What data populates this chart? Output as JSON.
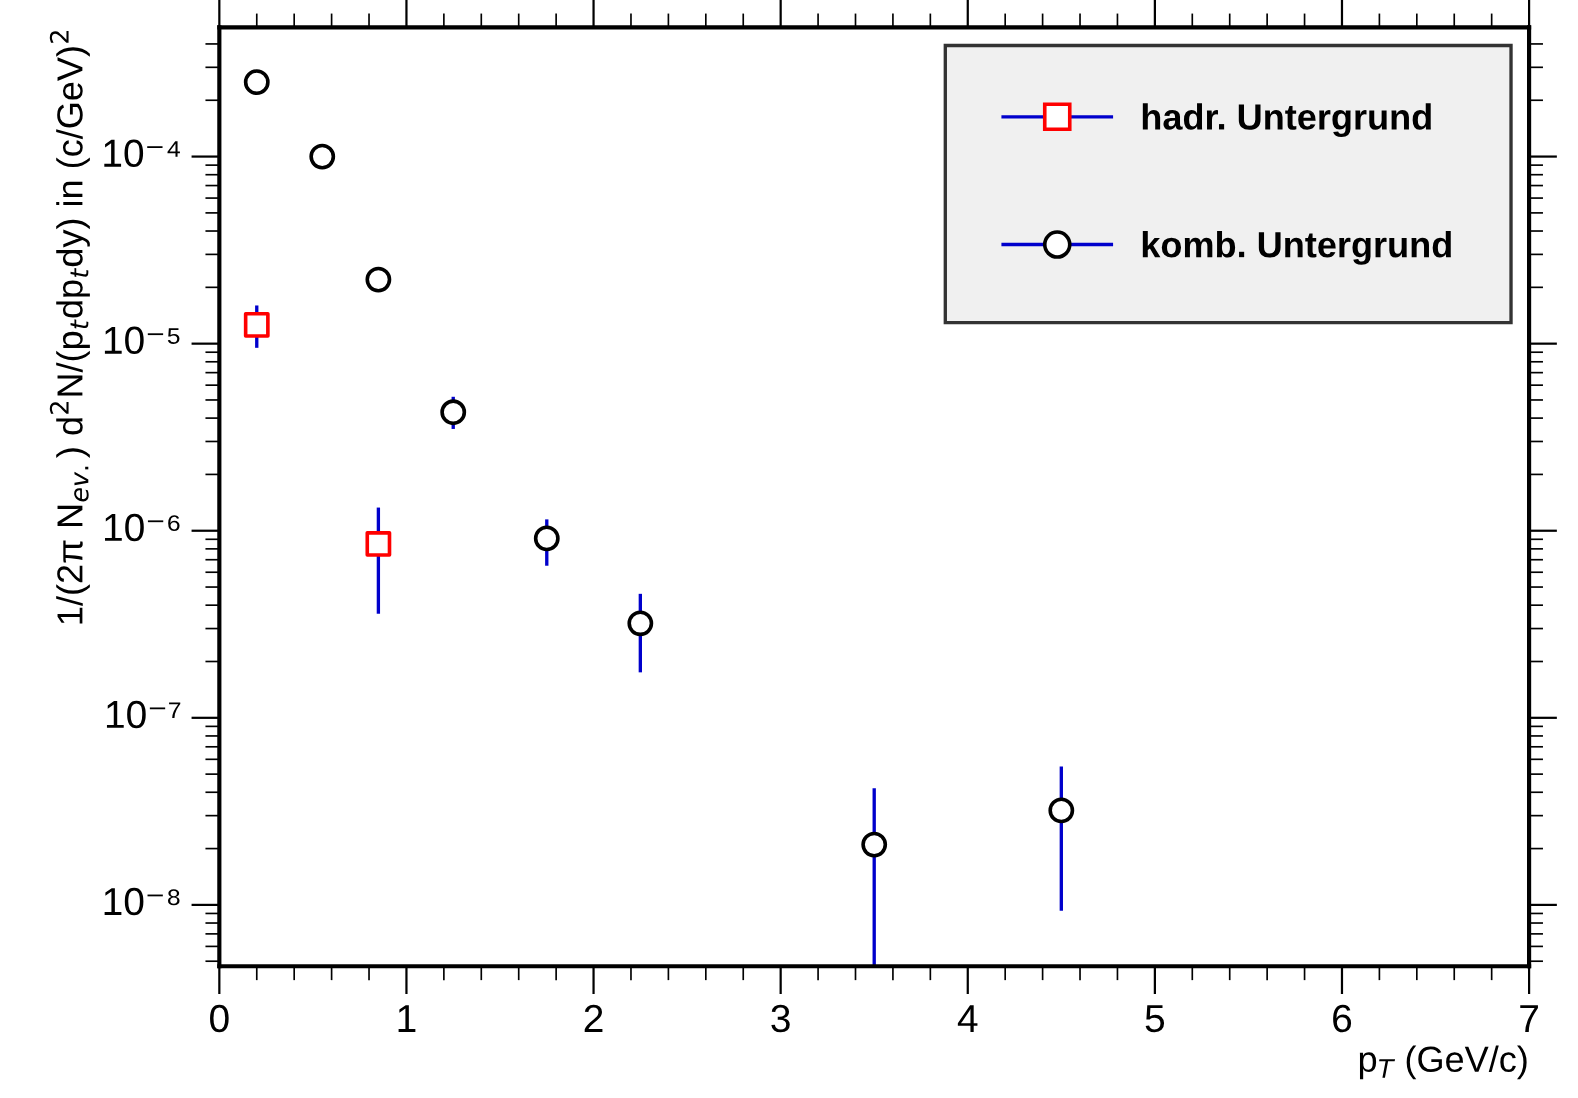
{
  "chart_data": {
    "type": "scatter",
    "xlabel": "p$_{T}$ (GeV/c)",
    "ylabel": "1/(2π N$_{ev.}$) d$^{2}$N/(p$_{t}$dp$_{t}$dy) in (c/GeV)$^{2}$",
    "series": [
      {
        "name": "hadr. Untergrund",
        "color": "#ff0000",
        "marker": "square",
        "x": [
          0.2,
          0.85
        ],
        "values": [
          1.26e-05,
          8.5e-07
        ],
        "errors": [
          [
            9.5e-06,
            1.6e-05
          ],
          [
            3.6e-07,
            1.33e-06
          ]
        ]
      },
      {
        "name": "komb. Untergrund",
        "color": "#000000",
        "marker": "circle",
        "x": [
          0.2,
          0.55,
          0.85,
          1.25,
          1.75,
          2.25,
          3.5,
          4.5
        ],
        "values": [
          0.00025,
          0.0001,
          2.2e-05,
          4.3e-06,
          9.1e-07,
          3.2e-07,
          2.1e-08,
          3.2e-08
        ],
        "errors": [
          null,
          null,
          null,
          [
            3.5e-06,
            5.2e-06
          ],
          [
            6.5e-07,
            1.15e-06
          ],
          [
            1.75e-07,
            4.6e-07
          ],
          [
            4.7e-09,
            4.2e-08
          ],
          [
            9.3e-09,
            5.5e-08
          ]
        ]
      }
    ],
    "log": "y",
    "xlim": [
      0,
      7
    ],
    "xticks": [
      0,
      1,
      2,
      3,
      4,
      5,
      6,
      7
    ],
    "ylim": [
      4.7e-09,
      0.00049
    ],
    "yticks": [
      {
        "value": 1e-08,
        "label": "10⁻⁸"
      },
      {
        "value": 1e-07,
        "label": "10⁻⁷"
      },
      {
        "value": 1e-06,
        "label": "10⁻⁶"
      },
      {
        "value": 1e-05,
        "label": "10⁻⁵"
      },
      {
        "value": 0.0001,
        "label": "10⁻⁴"
      }
    ],
    "grid": false,
    "legend": "top right"
  }
}
